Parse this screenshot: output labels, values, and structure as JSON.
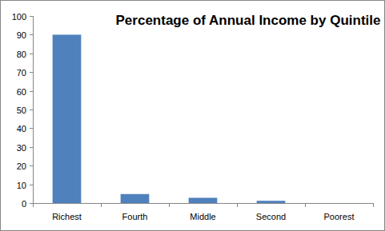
{
  "chart_data": {
    "type": "bar",
    "title": "Percentage of Annual Income by Quintile",
    "categories": [
      "Richest",
      "Fourth",
      "Middle",
      "Second",
      "Poorest"
    ],
    "values": [
      90,
      4.8,
      2.8,
      1.2,
      0
    ],
    "color": "#4f81bd",
    "ylim": [
      0,
      100
    ],
    "yticks": [
      0,
      10,
      20,
      30,
      40,
      50,
      60,
      70,
      80,
      90,
      100
    ],
    "grid": false
  }
}
